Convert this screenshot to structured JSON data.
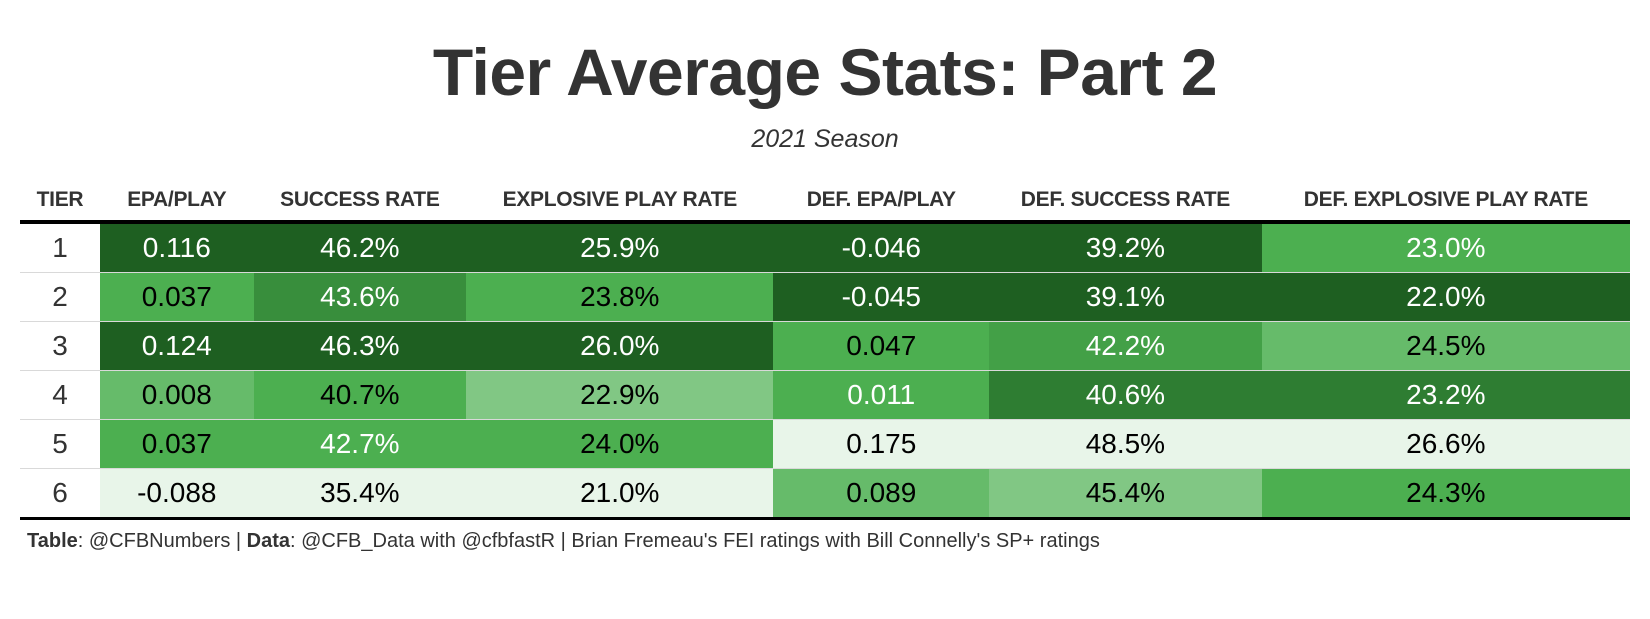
{
  "title": "Tier Average Stats: Part 2",
  "subtitle": "2021 Season",
  "footer": {
    "table_label": "Table",
    "table_value": ": @CFBNumbers | ",
    "data_label": "Data",
    "data_value": ": @CFB_Data with @cfbfastR | Brian Fremeau's FEI ratings with Bill Connelly's SP+ ratings"
  },
  "colors": {
    "darkest_green": "#1e5f21",
    "dark_green": "#2e7d32",
    "mid_green": "#43a047",
    "green": "#4caf50",
    "light_green": "#66bb6a",
    "pale_green": "#81c784",
    "very_pale_green": "#e8f5e9"
  },
  "chart_data": {
    "type": "table",
    "title": "Tier Average Stats: Part 2",
    "subtitle": "2021 Season",
    "columns": [
      "TIER",
      "EPA/PLAY",
      "SUCCESS RATE",
      "EXPLOSIVE PLAY RATE",
      "DEF. EPA/PLAY",
      "DEF. SUCCESS RATE",
      "DEF. EXPLOSIVE PLAY RATE"
    ],
    "rows": [
      [
        "1",
        "0.116",
        "46.2%",
        "25.9%",
        "-0.046",
        "39.2%",
        "23.0%"
      ],
      [
        "2",
        "0.037",
        "43.6%",
        "23.8%",
        "-0.045",
        "39.1%",
        "22.0%"
      ],
      [
        "3",
        "0.124",
        "46.3%",
        "26.0%",
        "0.047",
        "42.2%",
        "24.5%"
      ],
      [
        "4",
        "0.008",
        "40.7%",
        "22.9%",
        "0.011",
        "40.6%",
        "23.2%"
      ],
      [
        "5",
        "0.037",
        "42.7%",
        "24.0%",
        "0.175",
        "48.5%",
        "26.6%"
      ],
      [
        "6",
        "-0.088",
        "35.4%",
        "21.0%",
        "0.089",
        "45.4%",
        "24.3%"
      ]
    ],
    "cell_colors": [
      [
        "#1e5f21",
        "#1e5f21",
        "#1e5f21",
        "#1e5f21",
        "#1e5f21",
        "#4caf50"
      ],
      [
        "#4caf50",
        "#388e3c",
        "#4caf50",
        "#1e5f21",
        "#1e5f21",
        "#1e5f21"
      ],
      [
        "#1e5f21",
        "#1e5f21",
        "#1e5f21",
        "#4caf50",
        "#43a047",
        "#66bb6a"
      ],
      [
        "#66bb6a",
        "#4caf50",
        "#81c784",
        "#4caf50",
        "#2e7d32",
        "#2e7d32"
      ],
      [
        "#4caf50",
        "#4caf50",
        "#4caf50",
        "#e8f5e9",
        "#e8f5e9",
        "#e8f5e9"
      ],
      [
        "#e8f5e9",
        "#e8f5e9",
        "#e8f5e9",
        "#66bb6a",
        "#81c784",
        "#4caf50"
      ]
    ],
    "text_colors": [
      [
        "#ffffff",
        "#ffffff",
        "#ffffff",
        "#ffffff",
        "#ffffff",
        "#ffffff"
      ],
      [
        "#000000",
        "#ffffff",
        "#000000",
        "#ffffff",
        "#ffffff",
        "#ffffff"
      ],
      [
        "#ffffff",
        "#ffffff",
        "#ffffff",
        "#000000",
        "#ffffff",
        "#000000"
      ],
      [
        "#000000",
        "#000000",
        "#000000",
        "#ffffff",
        "#ffffff",
        "#ffffff"
      ],
      [
        "#000000",
        "#ffffff",
        "#000000",
        "#000000",
        "#000000",
        "#000000"
      ],
      [
        "#000000",
        "#000000",
        "#000000",
        "#000000",
        "#000000",
        "#000000"
      ]
    ]
  }
}
